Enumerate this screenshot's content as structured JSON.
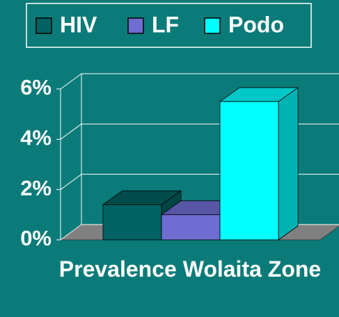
{
  "chart_data": {
    "type": "bar3d",
    "categories": [
      "Prevalence Wolaita Zone"
    ],
    "series": [
      {
        "name": "HIV",
        "color": "#006262",
        "values": [
          1.4
        ]
      },
      {
        "name": "LF",
        "color": "#6e6ed2",
        "values": [
          1.0
        ]
      },
      {
        "name": "Podo",
        "color": "#00ffff",
        "values": [
          5.5
        ]
      }
    ],
    "ylim": [
      0,
      6
    ],
    "yticks": [
      {
        "value": 0,
        "label": "0%"
      },
      {
        "value": 2,
        "label": "2%"
      },
      {
        "value": 4,
        "label": "4%"
      },
      {
        "value": 6,
        "label": "6%"
      }
    ],
    "grid": true,
    "legend": "top"
  }
}
